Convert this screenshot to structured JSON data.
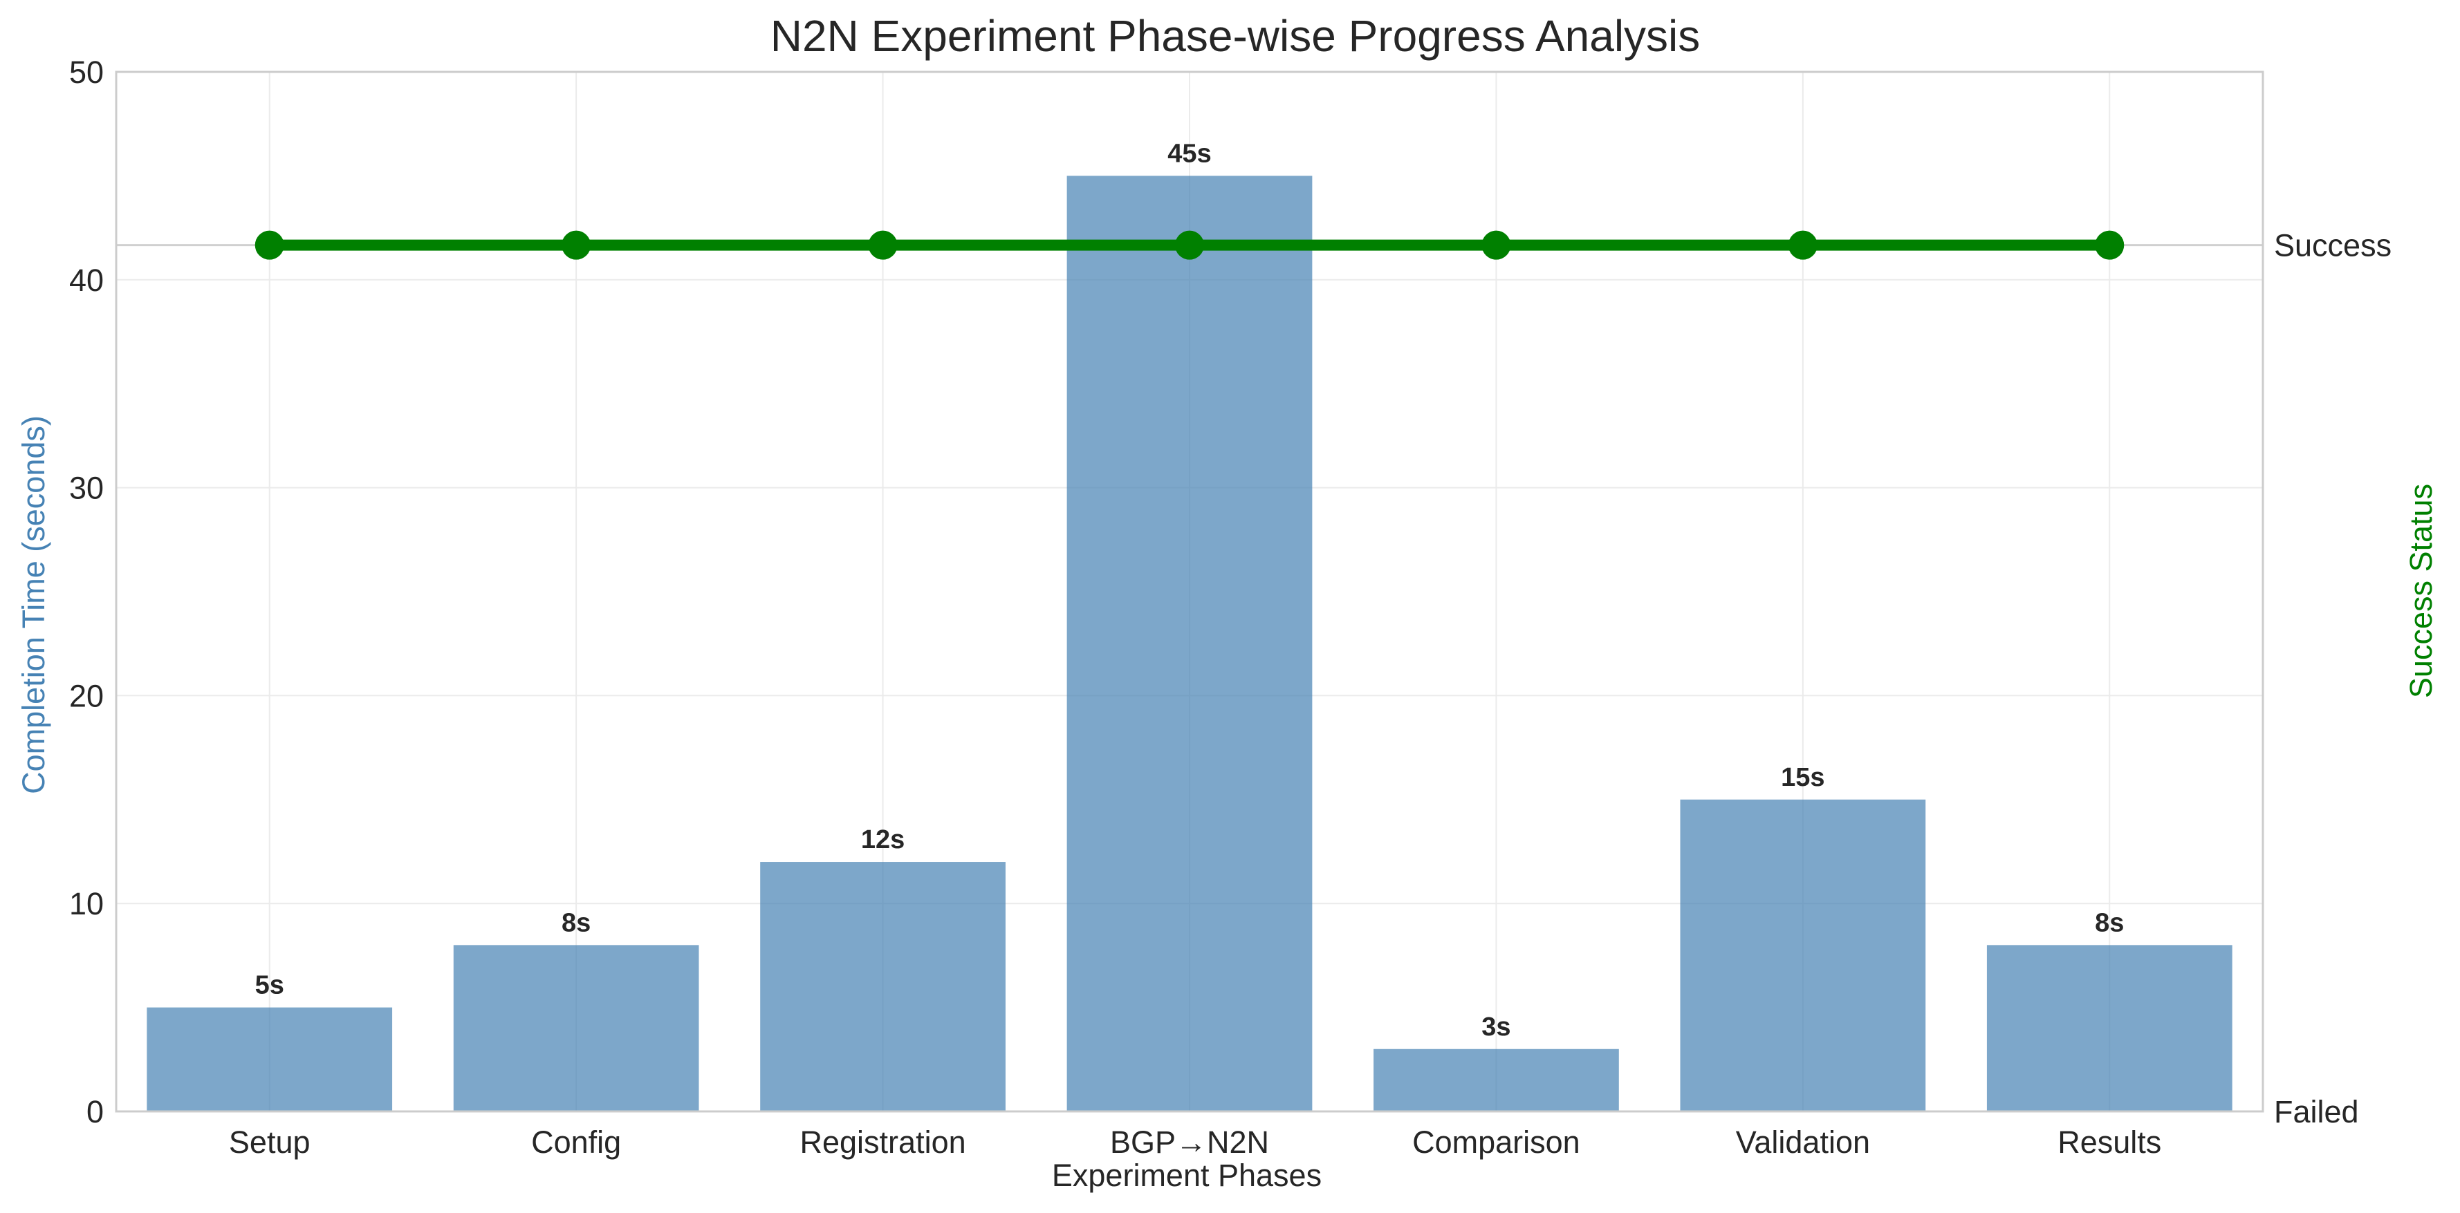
{
  "chart_data": {
    "type": "bar",
    "title": "N2N Experiment Phase-wise Progress Analysis",
    "xlabel": "Experiment Phases",
    "ylabel": "Completion Time (seconds)",
    "y2label": "Success Status",
    "categories": [
      "Setup",
      "Config",
      "Registration",
      "BGP→N2N",
      "Comparison",
      "Validation",
      "Results"
    ],
    "values": [
      5,
      8,
      12,
      45,
      3,
      15,
      8
    ],
    "bar_labels": [
      "5s",
      "8s",
      "12s",
      "45s",
      "3s",
      "15s",
      "8s"
    ],
    "ylim": [
      0,
      50
    ],
    "yticks": [
      "0",
      "10",
      "20",
      "30",
      "40",
      "50"
    ],
    "y2ticks": [
      "Failed",
      "Success"
    ],
    "success_line": {
      "type": "line",
      "values": [
        1,
        1,
        1,
        1,
        1,
        1,
        1
      ],
      "y2lim": [
        0,
        1.2
      ]
    },
    "grid": true,
    "colors": {
      "bars": "#4682b4",
      "success": "#008000",
      "ylabel": "#4682b4",
      "y2label": "#008000"
    }
  }
}
